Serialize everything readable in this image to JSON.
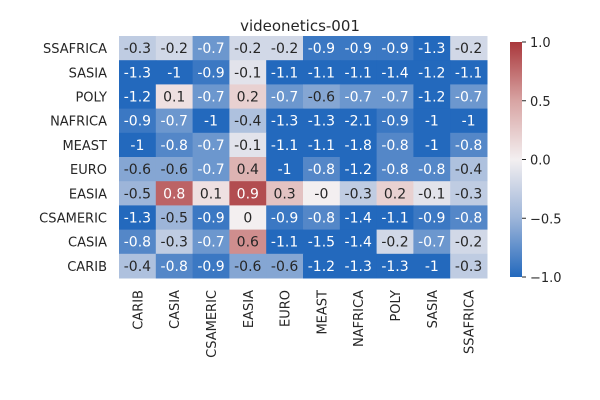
{
  "chart_data": {
    "type": "heatmap",
    "title": "videonetics-001",
    "x_categories": [
      "CARIB",
      "CASIA",
      "CSAMERIC",
      "EASIA",
      "EURO",
      "MEAST",
      "NAFRICA",
      "POLY",
      "SASIA",
      "SSAFRICA"
    ],
    "y_categories": [
      "SSAFRICA",
      "SASIA",
      "POLY",
      "NAFRICA",
      "MEAST",
      "EURO",
      "EASIA",
      "CSAMERIC",
      "CASIA",
      "CARIB"
    ],
    "values": [
      [
        -0.3,
        -0.2,
        -0.7,
        -0.2,
        -0.2,
        -0.9,
        -0.9,
        -0.9,
        -1.3,
        -0.2
      ],
      [
        -1.3,
        -1,
        -0.9,
        -0.1,
        -1.1,
        -1.1,
        -1.1,
        -1.4,
        -1.2,
        -1.1
      ],
      [
        -1.2,
        0.1,
        -0.7,
        0.2,
        -0.7,
        -0.6,
        -0.7,
        -0.7,
        -1.2,
        -0.7
      ],
      [
        -0.9,
        -0.7,
        -1,
        -0.4,
        -1.3,
        -1.3,
        -2.1,
        -0.9,
        -1,
        -1
      ],
      [
        -1,
        -0.8,
        -0.7,
        -0.1,
        -1.1,
        -1.1,
        -1.8,
        -0.8,
        -1,
        -0.8
      ],
      [
        -0.6,
        -0.6,
        -0.7,
        0.4,
        -1,
        -0.8,
        -1.2,
        -0.8,
        -0.8,
        -0.4
      ],
      [
        -0.5,
        0.8,
        0.1,
        0.9,
        0.3,
        0,
        -0.3,
        0.2,
        -0.1,
        -0.3
      ],
      [
        -1.3,
        -0.5,
        -0.9,
        0,
        -0.9,
        -0.8,
        -1.4,
        -1.1,
        -0.9,
        -0.8
      ],
      [
        -0.8,
        -0.3,
        -0.7,
        0.6,
        -1.1,
        -1.5,
        -1.4,
        -0.2,
        -0.7,
        -0.2
      ],
      [
        -0.4,
        -0.8,
        -0.9,
        -0.6,
        -0.6,
        -1.2,
        -1.3,
        -1.3,
        -1,
        -0.3
      ]
    ],
    "cell_labels": [
      [
        "-0.3",
        "-0.2",
        "-0.7",
        "-0.2",
        "-0.2",
        "-0.9",
        "-0.9",
        "-0.9",
        "-1.3",
        "-0.2"
      ],
      [
        "-1.3",
        "-1",
        "-0.9",
        "-0.1",
        "-1.1",
        "-1.1",
        "-1.1",
        "-1.4",
        "-1.2",
        "-1.1"
      ],
      [
        "-1.2",
        "0.1",
        "-0.7",
        "0.2",
        "-0.7",
        "-0.6",
        "-0.7",
        "-0.7",
        "-1.2",
        "-0.7"
      ],
      [
        "-0.9",
        "-0.7",
        "-1",
        "-0.4",
        "-1.3",
        "-1.3",
        "-2.1",
        "-0.9",
        "-1",
        "-1"
      ],
      [
        "-1",
        "-0.8",
        "-0.7",
        "-0.1",
        "-1.1",
        "-1.1",
        "-1.8",
        "-0.8",
        "-1",
        "-0.8"
      ],
      [
        "-0.6",
        "-0.6",
        "-0.7",
        "0.4",
        "-1",
        "-0.8",
        "-1.2",
        "-0.8",
        "-0.8",
        "-0.4"
      ],
      [
        "-0.5",
        "0.8",
        "0.1",
        "0.9",
        "0.3",
        "-0",
        "-0.3",
        "0.2",
        "-0.1",
        "-0.3"
      ],
      [
        "-1.3",
        "-0.5",
        "-0.9",
        "0",
        "-0.9",
        "-0.8",
        "-1.4",
        "-1.1",
        "-0.9",
        "-0.8"
      ],
      [
        "-0.8",
        "-0.3",
        "-0.7",
        "0.6",
        "-1.1",
        "-1.5",
        "-1.4",
        "-0.2",
        "-0.7",
        "-0.2"
      ],
      [
        "-0.4",
        "-0.8",
        "-0.9",
        "-0.6",
        "-0.6",
        "-1.2",
        "-1.3",
        "-1.3",
        "-1",
        "-0.3"
      ]
    ],
    "colormap": {
      "name": "vlag",
      "vmin": -1.0,
      "vmax": 1.0,
      "low_color": "#2369bd",
      "mid_color": "#f3eff0",
      "high_color": "#a9373b"
    },
    "colorbar": {
      "ticks": [
        1.0,
        0.5,
        0.0,
        -0.5,
        -1.0
      ],
      "tick_labels": [
        "1.0",
        "0.5",
        "0.0",
        "−0.5",
        "−1.0"
      ]
    },
    "grid": false,
    "legend": "colorbar-right"
  }
}
